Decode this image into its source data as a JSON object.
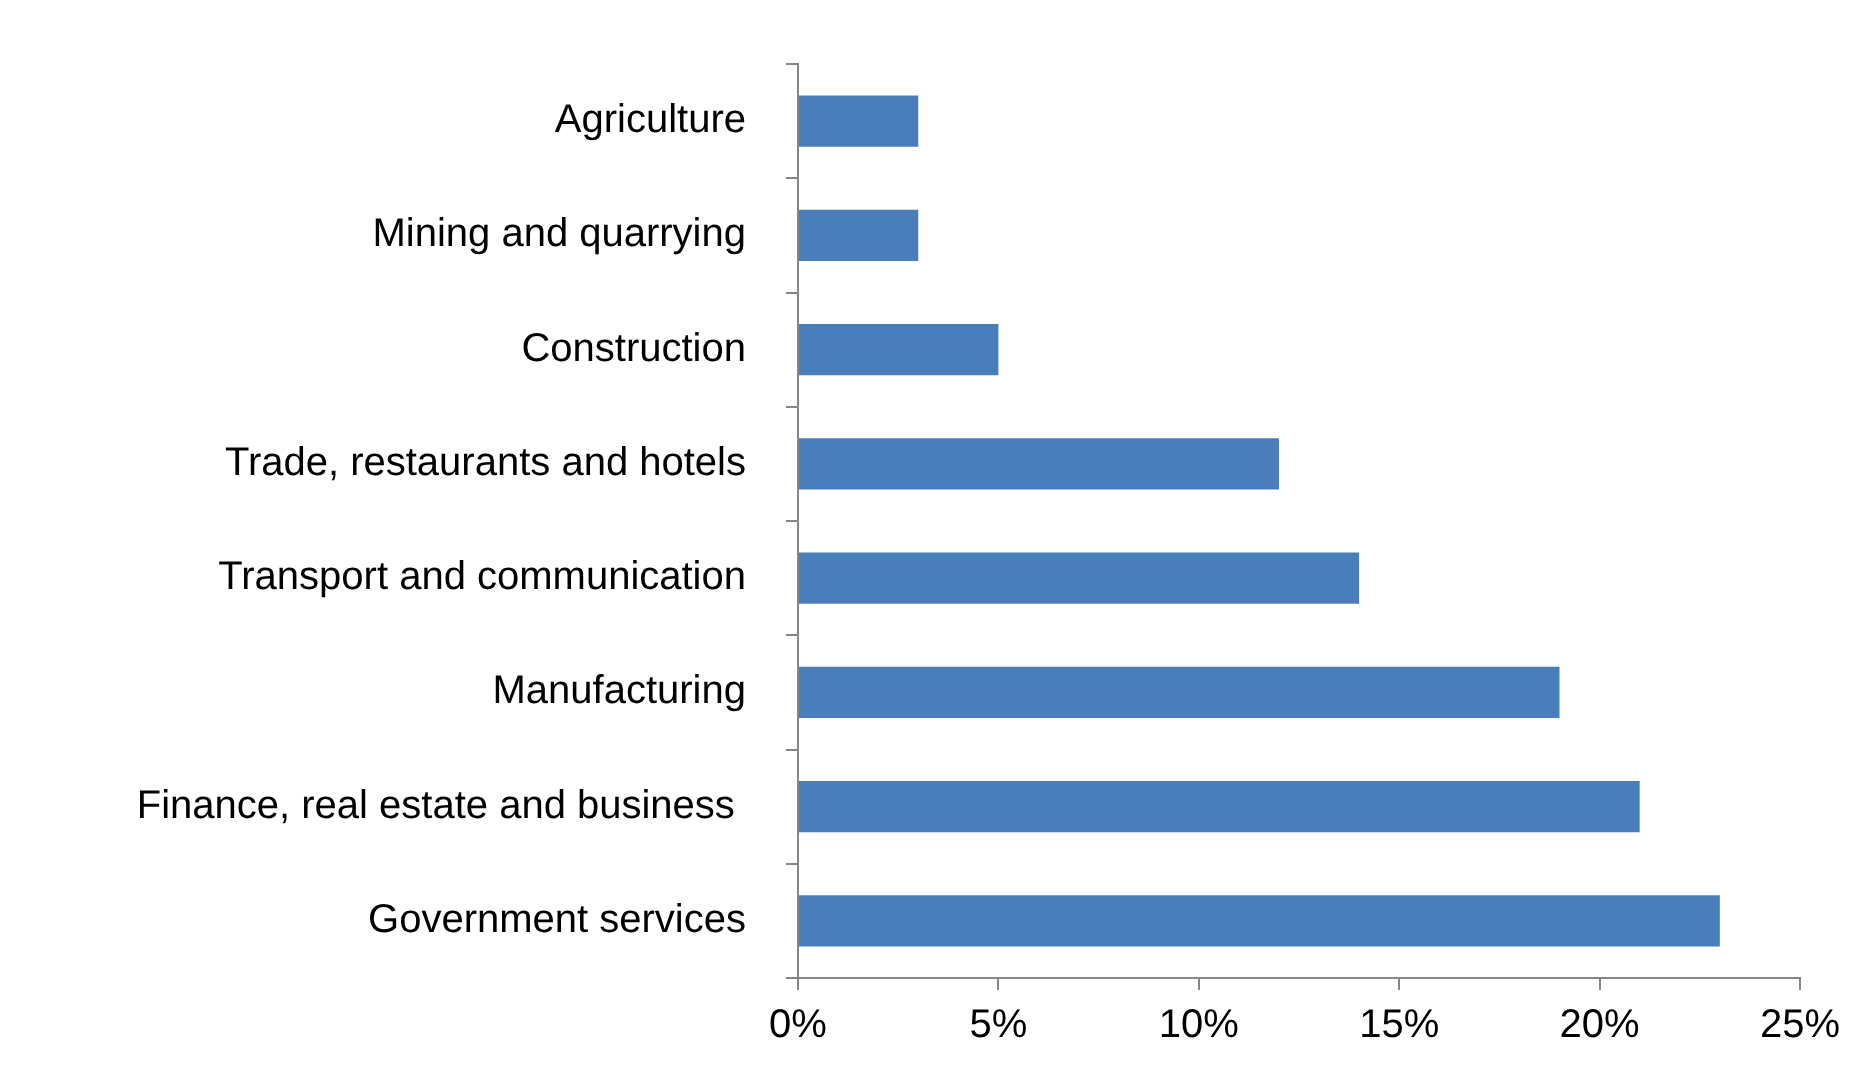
{
  "chart_data": {
    "type": "bar",
    "orientation": "horizontal",
    "categories": [
      "Agriculture",
      "Mining and quarrying",
      "Construction",
      "Trade, restaurants and hotels",
      "Transport and communication",
      "Manufacturing",
      "Finance, real estate and business ",
      "Government services"
    ],
    "values": [
      3,
      3,
      5,
      12,
      14,
      19,
      21,
      23
    ],
    "color": "#4a7ebb",
    "xlim": [
      0,
      25
    ],
    "xticks": [
      {
        "value": 0,
        "label": "0%"
      },
      {
        "value": 5,
        "label": "5%"
      },
      {
        "value": 10,
        "label": "10%"
      },
      {
        "value": 15,
        "label": "15%"
      },
      {
        "value": 20,
        "label": "20%"
      },
      {
        "value": 25,
        "label": "25%"
      }
    ],
    "grid": false,
    "legend": false
  }
}
